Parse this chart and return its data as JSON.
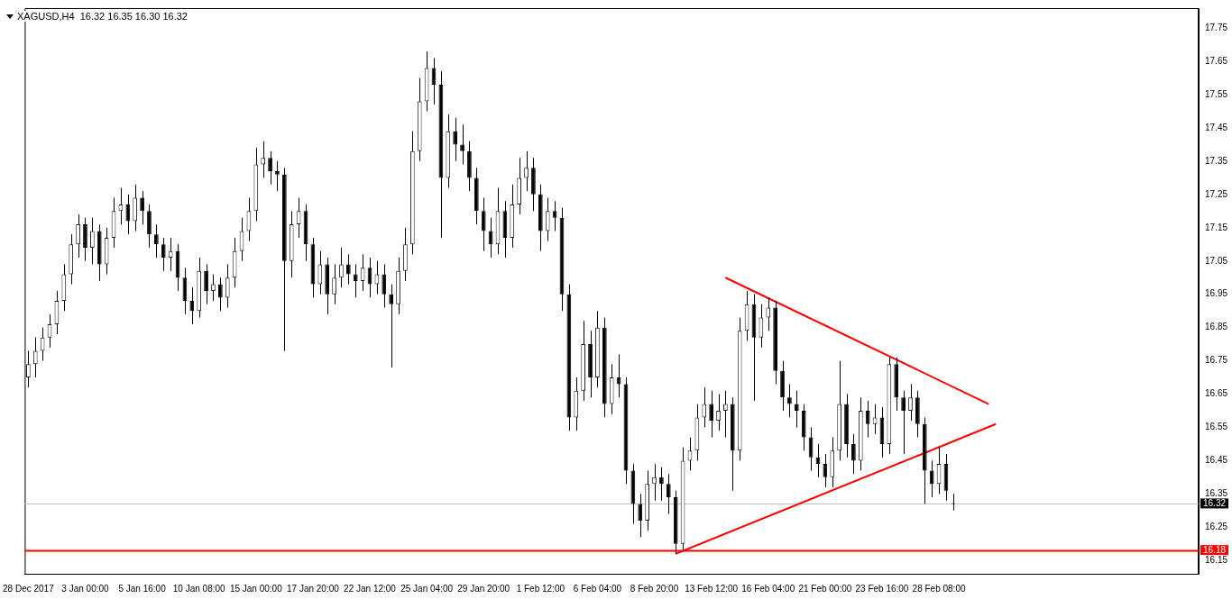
{
  "chart_data": {
    "type": "candlestick",
    "title": "XAGUSD,H4  16.32 16.35 16.30 16.32",
    "categories": [
      "28 Dec 2017",
      null,
      null,
      null,
      null,
      null,
      null,
      null,
      "3 Jan 00:00",
      null,
      null,
      null,
      null,
      null,
      null,
      null,
      "5 Jan 16:00",
      null,
      null,
      null,
      null,
      null,
      null,
      null,
      "10 Jan 08:00",
      null,
      null,
      null,
      null,
      null,
      null,
      null,
      "15 Jan 00:00",
      null,
      null,
      null,
      null,
      null,
      null,
      null,
      "17 Jan 20:00",
      null,
      null,
      null,
      null,
      null,
      null,
      null,
      "22 Jan 12:00",
      null,
      null,
      null,
      null,
      null,
      null,
      null,
      "25 Jan 04:00",
      null,
      null,
      null,
      null,
      null,
      null,
      null,
      "29 Jan 20:00",
      null,
      null,
      null,
      null,
      null,
      null,
      null,
      "1 Feb 12:00",
      null,
      null,
      null,
      null,
      null,
      null,
      null,
      "6 Feb 04:00",
      null,
      null,
      null,
      null,
      null,
      null,
      null,
      "8 Feb 20:00",
      null,
      null,
      null,
      null,
      null,
      null,
      null,
      "13 Feb 12:00",
      null,
      null,
      null,
      null,
      null,
      null,
      null,
      "16 Feb 04:00",
      null,
      null,
      null,
      null,
      null,
      null,
      null,
      "21 Feb 00:00",
      null,
      null,
      null,
      null,
      null,
      null,
      null,
      "23 Feb 16:00",
      null,
      null,
      null,
      null,
      null,
      null,
      null,
      "28 Feb 08:00",
      null,
      null,
      null,
      null,
      null,
      null,
      null,
      null,
      null,
      null,
      null,
      null,
      null,
      null,
      null,
      null,
      null,
      null,
      null,
      null,
      null,
      null,
      null,
      null,
      null,
      null,
      null,
      null,
      null,
      null,
      null,
      null,
      null,
      null,
      null,
      null
    ],
    "ohlc": [
      [
        16.7,
        16.78,
        16.67,
        16.74
      ],
      [
        16.74,
        16.82,
        16.7,
        16.78
      ],
      [
        16.78,
        16.85,
        16.75,
        16.82
      ],
      [
        16.82,
        16.89,
        16.79,
        16.86
      ],
      [
        16.86,
        16.96,
        16.83,
        16.93
      ],
      [
        16.93,
        17.04,
        16.9,
        17.01
      ],
      [
        17.01,
        17.13,
        16.98,
        17.1
      ],
      [
        17.1,
        17.19,
        17.06,
        17.16
      ],
      [
        17.16,
        17.18,
        17.05,
        17.09
      ],
      [
        17.09,
        17.18,
        17.04,
        17.14
      ],
      [
        17.14,
        17.16,
        16.99,
        17.04
      ],
      [
        17.04,
        17.15,
        17.01,
        17.12
      ],
      [
        17.12,
        17.24,
        17.09,
        17.2
      ],
      [
        17.2,
        17.27,
        17.16,
        17.22
      ],
      [
        17.22,
        17.25,
        17.13,
        17.17
      ],
      [
        17.17,
        17.28,
        17.14,
        17.24
      ],
      [
        17.24,
        17.26,
        17.16,
        17.2
      ],
      [
        17.2,
        17.22,
        17.09,
        17.13
      ],
      [
        17.13,
        17.16,
        17.06,
        17.1
      ],
      [
        17.1,
        17.12,
        17.02,
        17.06
      ],
      [
        17.06,
        17.12,
        17.02,
        17.08
      ],
      [
        17.08,
        17.1,
        16.96,
        17.0
      ],
      [
        17.0,
        17.03,
        16.89,
        16.93
      ],
      [
        16.93,
        16.97,
        16.86,
        16.9
      ],
      [
        16.9,
        17.06,
        16.88,
        17.02
      ],
      [
        17.02,
        17.04,
        16.92,
        16.96
      ],
      [
        16.96,
        17.01,
        16.93,
        16.98
      ],
      [
        16.98,
        17.0,
        16.9,
        16.94
      ],
      [
        16.94,
        17.04,
        16.91,
        17.0
      ],
      [
        17.0,
        17.12,
        16.97,
        17.08
      ],
      [
        17.08,
        17.18,
        17.05,
        17.14
      ],
      [
        17.14,
        17.24,
        17.11,
        17.2
      ],
      [
        17.2,
        17.39,
        17.17,
        17.34
      ],
      [
        17.34,
        17.41,
        17.3,
        17.36
      ],
      [
        17.36,
        17.38,
        17.28,
        17.32
      ],
      [
        17.32,
        17.35,
        17.26,
        17.31
      ],
      [
        17.31,
        17.33,
        16.78,
        17.05
      ],
      [
        17.05,
        17.2,
        17.0,
        17.16
      ],
      [
        17.16,
        17.24,
        17.12,
        17.2
      ],
      [
        17.2,
        17.22,
        17.05,
        17.1
      ],
      [
        17.1,
        17.12,
        16.94,
        16.98
      ],
      [
        16.98,
        17.08,
        16.95,
        17.04
      ],
      [
        17.04,
        17.06,
        16.89,
        16.95
      ],
      [
        16.95,
        17.04,
        16.92,
        17.0
      ],
      [
        17.0,
        17.09,
        16.97,
        17.04
      ],
      [
        17.04,
        17.07,
        16.98,
        17.01
      ],
      [
        17.01,
        17.04,
        16.94,
        16.99
      ],
      [
        16.99,
        17.07,
        16.96,
        17.03
      ],
      [
        17.03,
        17.06,
        16.94,
        16.98
      ],
      [
        16.98,
        17.05,
        16.95,
        17.01
      ],
      [
        17.01,
        17.04,
        16.91,
        16.95
      ],
      [
        16.95,
        16.98,
        16.73,
        16.92
      ],
      [
        16.92,
        17.06,
        16.89,
        17.02
      ],
      [
        17.02,
        17.15,
        16.99,
        17.1
      ],
      [
        17.1,
        17.44,
        17.07,
        17.38
      ],
      [
        17.38,
        17.6,
        17.35,
        17.53
      ],
      [
        17.53,
        17.68,
        17.5,
        17.63
      ],
      [
        17.63,
        17.66,
        17.52,
        17.58
      ],
      [
        17.58,
        17.62,
        17.12,
        17.3
      ],
      [
        17.3,
        17.49,
        17.27,
        17.44
      ],
      [
        17.44,
        17.48,
        17.35,
        17.4
      ],
      [
        17.4,
        17.46,
        17.34,
        17.38
      ],
      [
        17.38,
        17.41,
        17.26,
        17.3
      ],
      [
        17.3,
        17.33,
        17.16,
        17.2
      ],
      [
        17.2,
        17.24,
        17.08,
        17.14
      ],
      [
        17.14,
        17.18,
        17.06,
        17.1
      ],
      [
        17.1,
        17.27,
        17.07,
        17.2
      ],
      [
        17.2,
        17.23,
        17.06,
        17.12
      ],
      [
        17.12,
        17.28,
        17.09,
        17.22
      ],
      [
        17.22,
        17.36,
        17.19,
        17.3
      ],
      [
        17.3,
        17.38,
        17.26,
        17.33
      ],
      [
        17.33,
        17.36,
        17.2,
        17.25
      ],
      [
        17.25,
        17.28,
        17.08,
        17.14
      ],
      [
        17.14,
        17.24,
        17.11,
        17.2
      ],
      [
        17.2,
        17.23,
        17.14,
        17.18
      ],
      [
        17.18,
        17.21,
        16.9,
        16.95
      ],
      [
        16.95,
        16.98,
        16.54,
        16.58
      ],
      [
        16.58,
        16.7,
        16.54,
        16.66
      ],
      [
        16.66,
        16.87,
        16.63,
        16.8
      ],
      [
        16.8,
        16.84,
        16.64,
        16.7
      ],
      [
        16.7,
        16.9,
        16.67,
        16.85
      ],
      [
        16.85,
        16.88,
        16.58,
        16.62
      ],
      [
        16.62,
        16.74,
        16.59,
        16.7
      ],
      [
        16.7,
        16.77,
        16.64,
        16.68
      ],
      [
        16.68,
        16.7,
        16.38,
        16.42
      ],
      [
        16.42,
        16.44,
        16.26,
        16.32
      ],
      [
        16.32,
        16.35,
        16.22,
        16.27
      ],
      [
        16.27,
        16.42,
        16.24,
        16.38
      ],
      [
        16.38,
        16.44,
        16.33,
        16.4
      ],
      [
        16.4,
        16.43,
        16.33,
        16.38
      ],
      [
        16.38,
        16.41,
        16.29,
        16.34
      ],
      [
        16.34,
        16.36,
        16.17,
        16.2
      ],
      [
        16.2,
        16.49,
        16.18,
        16.45
      ],
      [
        16.45,
        16.52,
        16.42,
        16.48
      ],
      [
        16.48,
        16.62,
        16.45,
        16.58
      ],
      [
        16.58,
        16.67,
        16.55,
        16.62
      ],
      [
        16.62,
        16.66,
        16.52,
        16.57
      ],
      [
        16.57,
        16.65,
        16.54,
        16.6
      ],
      [
        16.6,
        16.66,
        16.52,
        16.62
      ],
      [
        16.62,
        16.64,
        16.36,
        16.48
      ],
      [
        16.48,
        16.88,
        16.45,
        16.84
      ],
      [
        16.84,
        16.96,
        16.81,
        16.92
      ],
      [
        16.92,
        16.95,
        16.63,
        16.82
      ],
      [
        16.82,
        16.92,
        16.79,
        16.88
      ],
      [
        16.88,
        16.94,
        16.84,
        16.91
      ],
      [
        16.91,
        16.93,
        16.68,
        16.72
      ],
      [
        16.72,
        16.75,
        16.6,
        16.64
      ],
      [
        16.64,
        16.68,
        16.58,
        16.62
      ],
      [
        16.62,
        16.66,
        16.55,
        16.6
      ],
      [
        16.6,
        16.62,
        16.48,
        16.52
      ],
      [
        16.52,
        16.55,
        16.42,
        16.46
      ],
      [
        16.46,
        16.5,
        16.4,
        16.44
      ],
      [
        16.44,
        16.47,
        16.37,
        16.4
      ],
      [
        16.4,
        16.52,
        16.37,
        16.48
      ],
      [
        16.48,
        16.75,
        16.45,
        16.62
      ],
      [
        16.62,
        16.65,
        16.46,
        16.5
      ],
      [
        16.5,
        16.53,
        16.41,
        16.45
      ],
      [
        16.45,
        16.64,
        16.42,
        16.6
      ],
      [
        16.6,
        16.63,
        16.52,
        16.56
      ],
      [
        16.56,
        16.62,
        16.53,
        16.58
      ],
      [
        16.58,
        16.61,
        16.46,
        16.5
      ],
      [
        16.5,
        16.76,
        16.47,
        16.74
      ],
      [
        16.74,
        16.76,
        16.6,
        16.64
      ],
      [
        16.64,
        16.66,
        16.47,
        16.6
      ],
      [
        16.6,
        16.68,
        16.57,
        16.64
      ],
      [
        16.64,
        16.66,
        16.52,
        16.56
      ],
      [
        16.56,
        16.58,
        16.32,
        16.42
      ],
      [
        16.42,
        16.45,
        16.34,
        16.38
      ],
      [
        16.38,
        16.49,
        16.35,
        16.44
      ],
      [
        16.44,
        16.47,
        16.33,
        16.36
      ],
      [
        16.32,
        16.35,
        16.3,
        16.32
      ],
      null,
      null,
      null,
      null,
      null,
      null,
      null,
      null,
      null,
      null,
      null,
      null,
      null,
      null,
      null,
      null,
      null,
      null,
      null,
      null,
      null,
      null,
      null,
      null,
      null,
      null,
      null,
      null,
      null,
      null,
      null,
      null,
      null,
      null
    ],
    "series": [
      {
        "type": "line",
        "color": "#ff0000",
        "values": [
          null,
          null,
          null,
          null,
          null,
          null,
          null,
          null,
          null,
          null,
          null,
          null,
          null,
          null,
          null,
          null,
          null,
          null,
          null,
          null,
          null,
          null,
          null,
          null,
          null,
          null,
          null,
          null,
          null,
          null,
          null,
          null,
          null,
          null,
          null,
          null,
          null,
          null,
          null,
          null,
          null,
          null,
          null,
          null,
          null,
          null,
          null,
          null,
          null,
          null,
          null,
          null,
          null,
          null,
          null,
          null,
          null,
          null,
          null,
          null,
          null,
          null,
          null,
          null,
          null,
          null,
          null,
          null,
          null,
          null,
          null,
          null,
          null,
          null,
          null,
          null,
          null,
          null,
          null,
          null,
          null,
          null,
          null,
          null,
          null,
          null,
          null,
          null,
          null,
          null,
          null,
          null,
          null,
          null,
          null,
          null,
          null,
          null,
          17.0,
          null,
          null,
          null,
          null,
          null,
          null,
          null,
          null,
          null,
          null,
          null,
          null,
          null,
          null,
          null,
          null,
          null,
          null,
          null,
          null,
          null,
          null,
          null,
          null,
          null,
          null,
          null,
          null,
          null,
          null,
          null,
          null,
          null,
          null,
          null,
          null,
          16.62,
          null,
          null,
          null,
          null,
          null,
          null,
          null,
          null,
          null,
          null,
          null,
          null,
          null,
          null,
          null,
          null,
          null,
          null,
          null,
          null,
          null,
          null,
          null,
          null,
          null,
          null,
          null,
          null,
          null
        ]
      },
      {
        "type": "line",
        "color": "#ff0000",
        "values": [
          null,
          null,
          null,
          null,
          null,
          null,
          null,
          null,
          null,
          null,
          null,
          null,
          null,
          null,
          null,
          null,
          null,
          null,
          null,
          null,
          null,
          null,
          null,
          null,
          null,
          null,
          null,
          null,
          null,
          null,
          null,
          null,
          null,
          null,
          null,
          null,
          null,
          null,
          null,
          null,
          null,
          null,
          null,
          null,
          null,
          null,
          null,
          null,
          null,
          null,
          null,
          null,
          null,
          null,
          null,
          null,
          null,
          null,
          null,
          null,
          null,
          null,
          null,
          null,
          null,
          null,
          null,
          null,
          null,
          null,
          null,
          null,
          null,
          null,
          null,
          null,
          null,
          null,
          null,
          null,
          null,
          null,
          null,
          null,
          null,
          null,
          null,
          null,
          null,
          null,
          null,
          16.17,
          null,
          null,
          null,
          null,
          null,
          null,
          null,
          null,
          null,
          null,
          null,
          null,
          null,
          null,
          null,
          null,
          null,
          null,
          null,
          null,
          null,
          null,
          null,
          null,
          null,
          null,
          null,
          null,
          null,
          null,
          null,
          null,
          null,
          null,
          null,
          null,
          null,
          null,
          null,
          null,
          null,
          null,
          null,
          null,
          16.56,
          null,
          null,
          null,
          null,
          null,
          null,
          null,
          null,
          null,
          null,
          null,
          null,
          null,
          null,
          null,
          null,
          null,
          null,
          null,
          null,
          null,
          null,
          null,
          null,
          null,
          null,
          null,
          null
        ]
      }
    ],
    "ylim": [
      16.11,
      17.81
    ],
    "yticks": [
      16.15,
      16.25,
      16.35,
      16.45,
      16.55,
      16.65,
      16.75,
      16.85,
      16.95,
      17.05,
      17.15,
      17.25,
      17.35,
      17.45,
      17.55,
      17.65,
      17.75
    ],
    "ref_lines": [
      {
        "axis": "y",
        "value": 16.18,
        "label": "16.18",
        "color": "#ff0000"
      },
      {
        "axis": "y",
        "value": 16.32,
        "label": "16.32",
        "color": "#c0c0c0"
      }
    ]
  }
}
